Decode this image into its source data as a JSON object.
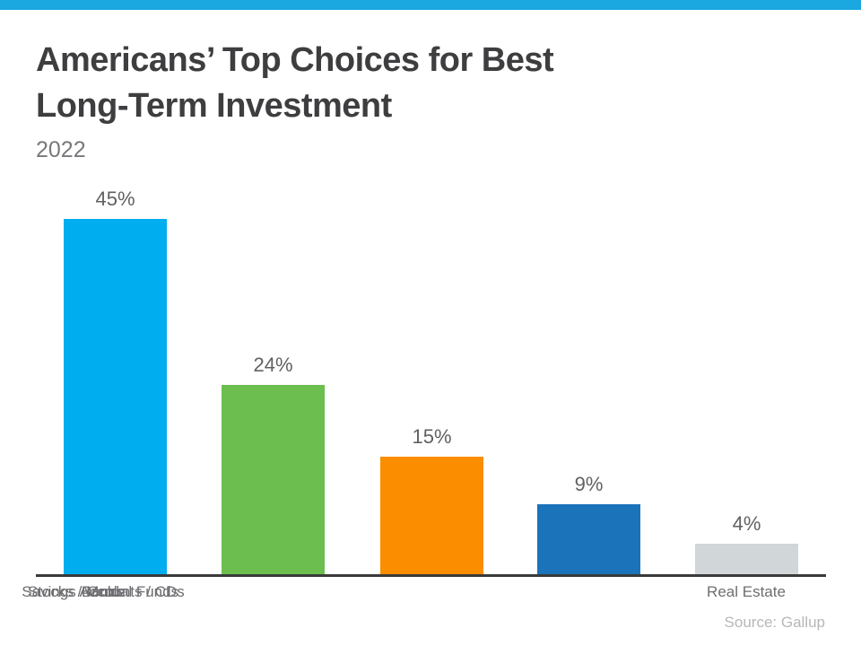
{
  "accent": {
    "top_bar_color": "#1ba7e0",
    "axis_color": "#3a3a3a"
  },
  "header": {
    "title_lines": [
      "Americans’ Top Choices for Best",
      "Long-Term Investment"
    ],
    "subtitle": "2022"
  },
  "chart_data": {
    "type": "bar",
    "title": "Americans’ Top Choices for Best Long-Term Investment",
    "subtitle": "2022",
    "categories": [
      "Real Estate",
      "Stocks / Mutual Funds",
      "Gold",
      "Savings Accounts / CDs",
      "Bonds"
    ],
    "values": [
      45,
      24,
      15,
      9,
      4
    ],
    "value_labels": [
      "45%",
      "24%",
      "15%",
      "9%",
      "4%"
    ],
    "bar_colors": [
      "#00aeef",
      "#6cbe4e",
      "#fa8d00",
      "#1b73ba",
      "#d1d6d9"
    ],
    "xlabel": "",
    "ylabel": "",
    "ylim": [
      0,
      50
    ],
    "grid": false,
    "legend": false,
    "source": "Source: Gallup"
  }
}
